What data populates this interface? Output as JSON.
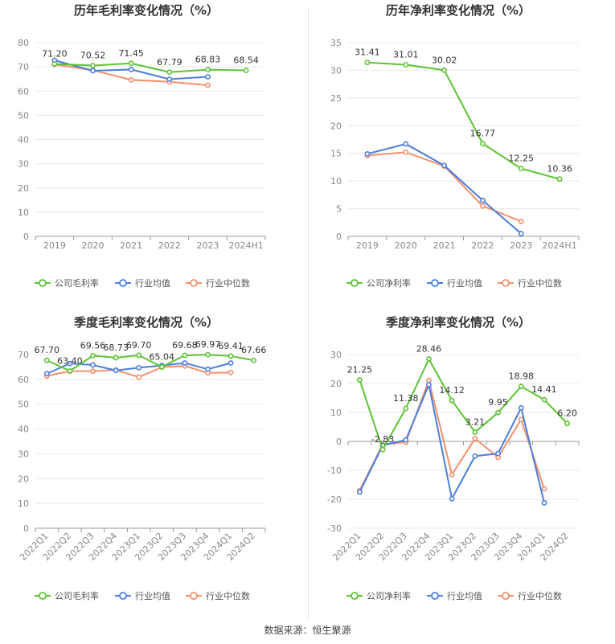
{
  "source": "数据来源：恒生聚源",
  "colors": {
    "company": "#5cc433",
    "avg": "#4a7ee0",
    "median": "#f4906a",
    "axis": "#888888",
    "grid": "#e8e8e8"
  },
  "legend": [
    "公司毛利率",
    "行业均值",
    "行业中位数"
  ],
  "chart_data": [
    {
      "type": "line",
      "title": "历年毛利率变化情况（%）",
      "categories": [
        "2019",
        "2020",
        "2021",
        "2022",
        "2023",
        "2024H1"
      ],
      "ylim": [
        0,
        80
      ],
      "yticks": [
        0,
        10,
        20,
        30,
        40,
        50,
        60,
        70,
        80
      ],
      "grid": true,
      "legend_position": "bottom",
      "legend": [
        "公司毛利率",
        "行业均值",
        "行业中位数"
      ],
      "series": [
        {
          "name": "公司毛利率",
          "values": [
            71.2,
            70.52,
            71.45,
            67.79,
            68.83,
            68.54
          ],
          "labels": [
            "71.20",
            "70.52",
            "71.45",
            "67.79",
            "68.83",
            "68.54"
          ]
        },
        {
          "name": "行业均值",
          "values": [
            72.7,
            68.4,
            68.9,
            64.9,
            65.9,
            null
          ]
        },
        {
          "name": "行业中位数",
          "values": [
            71.0,
            68.6,
            64.6,
            63.8,
            62.4,
            null
          ]
        }
      ]
    },
    {
      "type": "line",
      "title": "历年净利率变化情况（%）",
      "categories": [
        "2019",
        "2020",
        "2021",
        "2022",
        "2023",
        "2024H1"
      ],
      "ylim": [
        0,
        35
      ],
      "yticks": [
        0,
        5,
        10,
        15,
        20,
        25,
        30,
        35
      ],
      "grid": true,
      "legend_position": "bottom",
      "legend": [
        "公司净利率",
        "行业均值",
        "行业中位数"
      ],
      "series": [
        {
          "name": "公司净利率",
          "values": [
            31.41,
            31.01,
            30.02,
            16.77,
            12.25,
            10.36
          ],
          "labels": [
            "31.41",
            "31.01",
            "30.02",
            "16.77",
            "12.25",
            "10.36"
          ]
        },
        {
          "name": "行业均值",
          "values": [
            14.9,
            16.7,
            12.8,
            6.5,
            0.5,
            null
          ]
        },
        {
          "name": "行业中位数",
          "values": [
            14.6,
            15.2,
            12.7,
            5.5,
            2.7,
            null
          ]
        }
      ]
    },
    {
      "type": "line",
      "title": "季度毛利率变化情况（%）",
      "categories": [
        "2022Q1",
        "2022Q2",
        "2022Q3",
        "2022Q4",
        "2023Q1",
        "2023Q2",
        "2023Q3",
        "2023Q4",
        "2024Q1",
        "2024Q2"
      ],
      "ylim": [
        0,
        70
      ],
      "yticks": [
        0,
        10,
        20,
        30,
        40,
        50,
        60,
        70
      ],
      "grid": true,
      "legend_position": "bottom",
      "legend": [
        "公司毛利率",
        "行业均值",
        "行业中位数"
      ],
      "series": [
        {
          "name": "公司毛利率",
          "values": [
            67.7,
            63.4,
            69.56,
            68.73,
            69.7,
            65.04,
            69.68,
            69.97,
            69.41,
            67.66
          ],
          "labels": [
            "67.70",
            "63.40",
            "69.56",
            "68.73",
            "69.70",
            "65.04",
            "69.68",
            "69.97",
            "69.41",
            "67.66"
          ]
        },
        {
          "name": "行业均值",
          "values": [
            62.3,
            66.4,
            65.8,
            63.6,
            64.7,
            65.6,
            66.6,
            64.1,
            66.6,
            null
          ]
        },
        {
          "name": "行业中位数",
          "values": [
            61.4,
            63.3,
            63.3,
            63.8,
            60.9,
            64.9,
            65.4,
            62.6,
            62.8,
            null
          ]
        }
      ]
    },
    {
      "type": "line",
      "title": "季度净利率变化情况（%）",
      "categories": [
        "2022Q1",
        "2022Q2",
        "2022Q3",
        "2022Q4",
        "2023Q1",
        "2023Q2",
        "2023Q3",
        "2023Q4",
        "2024Q1",
        "2024Q2"
      ],
      "ylim": [
        -30,
        30
      ],
      "yticks": [
        -30,
        -20,
        -10,
        0,
        10,
        20,
        30
      ],
      "grid": true,
      "legend_position": "bottom",
      "legend": [
        "公司净利率",
        "行业均值",
        "行业中位数"
      ],
      "series": [
        {
          "name": "公司净利率",
          "values": [
            21.25,
            -2.83,
            11.38,
            28.46,
            14.12,
            3.21,
            9.95,
            18.98,
            14.41,
            6.2
          ],
          "labels": [
            "21.25",
            "-2.83",
            "11.38",
            "28.46",
            "14.12",
            "3.21",
            "9.95",
            "18.98",
            "14.41",
            "6.20"
          ]
        },
        {
          "name": "行业均值",
          "values": [
            -17.5,
            -1.4,
            0.5,
            19.6,
            -19.8,
            -5.1,
            -4.2,
            11.6,
            -21.2,
            null
          ]
        },
        {
          "name": "行业中位数",
          "values": [
            -17.0,
            -1.0,
            -0.3,
            21.1,
            -11.5,
            1.0,
            -5.5,
            7.6,
            -16.4,
            null
          ]
        }
      ]
    }
  ]
}
